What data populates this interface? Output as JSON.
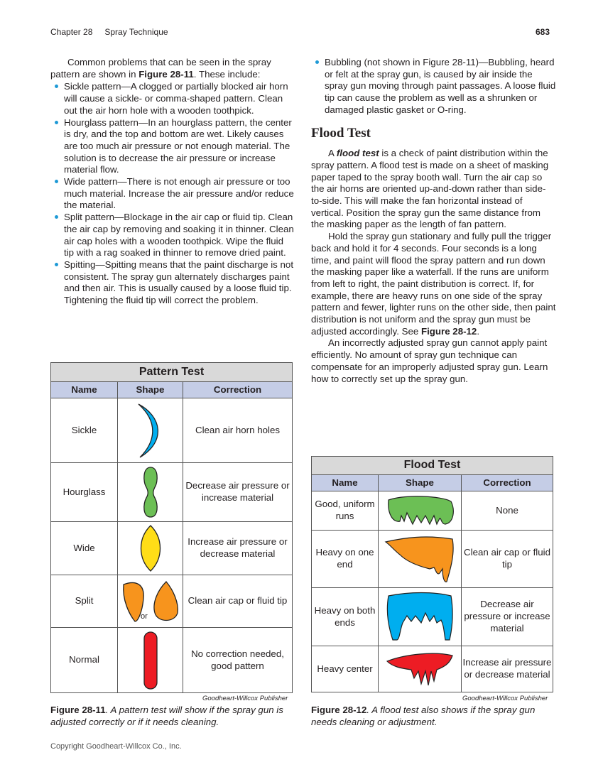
{
  "header": {
    "chapter": "Chapter 28",
    "title": "Spray Technique",
    "page": "683"
  },
  "left": {
    "intro_a": "Common problems that can be seen in the spray pattern are shown in ",
    "intro_ref": "Figure 28-11",
    "intro_b": ". These include:",
    "bullets": [
      "Sickle pattern—A clogged or partially blocked air horn will cause a sickle- or comma-shaped pattern. Clean out the air horn hole with a wooden toothpick.",
      "Hourglass pattern—In an hourglass pattern, the center is dry, and the top and bottom are wet. Likely causes are too much air pressure or not enough material. The solution is to decrease the air pressure or increase material flow.",
      "Wide pattern—There is not enough air pressure or too much material. Increase the air pressure and/or reduce the material.",
      "Split pattern—Blockage in the air cap or fluid tip. Clean the air cap by removing and soaking it in thinner. Clean air cap holes with a wooden toothpick. Wipe the fluid tip with a rag soaked in thinner to remove dried paint.",
      "Spitting—Spitting means that the paint discharge is not consistent. The spray gun alternately discharges paint and then air. This is usually caused by a loose fluid tip. Tightening the fluid tip will correct the problem."
    ]
  },
  "right": {
    "bullet": "Bubbling (not shown in Figure 28-11)—Bubbling, heard or felt at the spray gun, is caused by air inside the spray gun moving through paint passages. A loose fluid tip can cause the problem as well as a shrunken or damaged plastic gasket or O-ring.",
    "heading": "Flood Test",
    "p1_a": "A ",
    "p1_term": "flood test",
    "p1_b": " is a check of paint distribution within the spray pattern. A flood test is made on a sheet of masking paper taped to the spray booth wall. Turn the air cap so the air horns are oriented up-and-down rather than side-to-side. This will make the fan horizontal instead of vertical. Position the spray gun the same distance from the masking paper as the length of fan pattern.",
    "p2_a": "Hold the spray gun stationary and fully pull the trigger back and hold it for 4 seconds. Four seconds is a long time, and paint will flood the spray pattern and run down the masking paper like a waterfall. If the runs are uniform from left to right, the paint distribution is correct. If, for example, there are heavy runs on one side of the spray pattern and fewer, lighter runs on the other side, then paint distribution is not uniform and the spray gun must be adjusted accordingly. See ",
    "p2_ref": "Figure 28-12",
    "p2_b": ".",
    "p3": "An incorrectly adjusted spray gun cannot apply paint efficiently. No amount of spray gun technique can compensate for an improperly adjusted spray gun. Learn how to correctly set up the spray gun."
  },
  "pattern_table": {
    "title": "Pattern Test",
    "columns": [
      "Name",
      "Shape",
      "Correction"
    ],
    "rows": [
      {
        "name": "Sickle",
        "correction": "Clean air horn holes",
        "color": "#00aeef"
      },
      {
        "name": "Hourglass",
        "correction": "Decrease air pressure or increase material",
        "color": "#6cbf55"
      },
      {
        "name": "Wide",
        "correction": "Increase air pressure or decrease material",
        "color": "#ffdd17"
      },
      {
        "name": "Split",
        "correction": "Clean air cap or fluid tip",
        "color": "#f7941d",
        "or": "or"
      },
      {
        "name": "Normal",
        "correction": "No correction needed, good pattern",
        "color": "#ed1c24"
      }
    ],
    "credit": "Goodheart-Willcox Publisher",
    "caption_label": "Figure 28-11",
    "caption_text": ". A pattern test will show if the spray gun is adjusted correctly or if it needs cleaning."
  },
  "flood_table": {
    "title": "Flood Test",
    "columns": [
      "Name",
      "Shape",
      "Correction"
    ],
    "rows": [
      {
        "name": "Good, uniform runs",
        "correction": "None",
        "color": "#6cbf55"
      },
      {
        "name": "Heavy on one end",
        "correction": "Clean air cap or fluid tip",
        "color": "#f7941d"
      },
      {
        "name": "Heavy on both ends",
        "correction": "Decrease air pressure or increase material",
        "color": "#00aeef"
      },
      {
        "name": "Heavy center",
        "correction": "Increase air pressure or decrease material",
        "color": "#ed1c24"
      }
    ],
    "credit": "Goodheart-Willcox Publisher",
    "caption_label": "Figure 28-12",
    "caption_text": ". A flood test also shows if the spray gun needs cleaning or adjustment."
  },
  "footer": "Copyright Goodheart-Willcox Co., Inc."
}
